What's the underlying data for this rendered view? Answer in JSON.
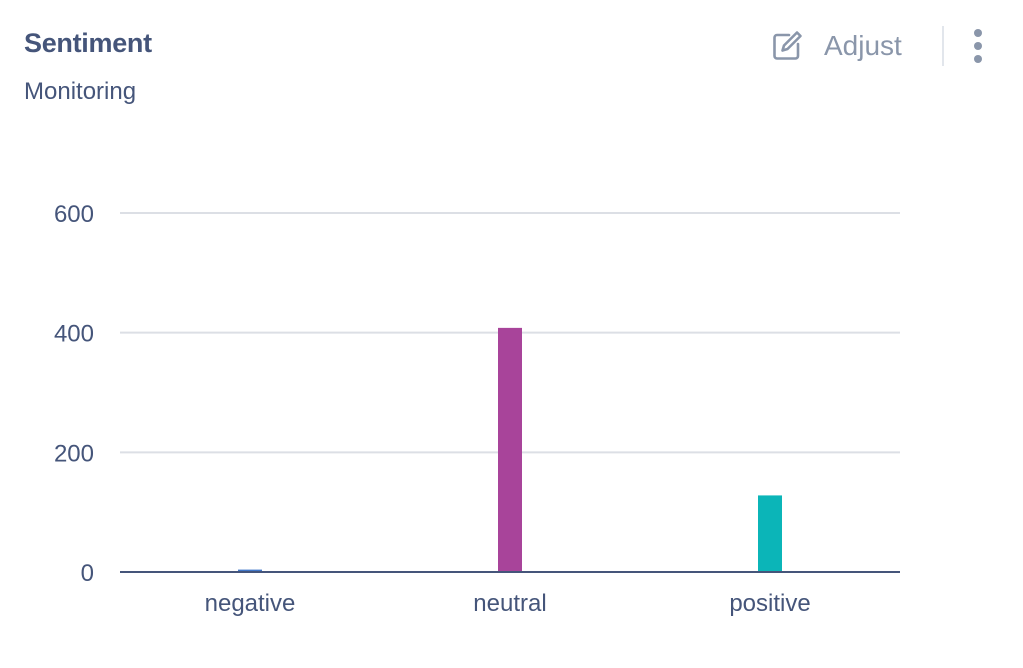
{
  "header": {
    "title": "Sentiment",
    "subtitle": "Monitoring",
    "adjust_label": "Adjust"
  },
  "icons": {
    "adjust": "edit-icon",
    "menu": "more-vertical-icon"
  },
  "colors": {
    "negative": "#3f76c9",
    "neutral": "#a8449a",
    "positive": "#0bb5b8"
  },
  "chart_data": {
    "type": "bar",
    "categories": [
      "negative",
      "neutral",
      "positive"
    ],
    "values": [
      4,
      408,
      128
    ],
    "title": "Sentiment",
    "subtitle": "Monitoring",
    "xlabel": "",
    "ylabel": "",
    "ylim": [
      0,
      600
    ],
    "yticks": [
      0,
      200,
      400,
      600
    ],
    "grid": true,
    "legend": "none"
  }
}
